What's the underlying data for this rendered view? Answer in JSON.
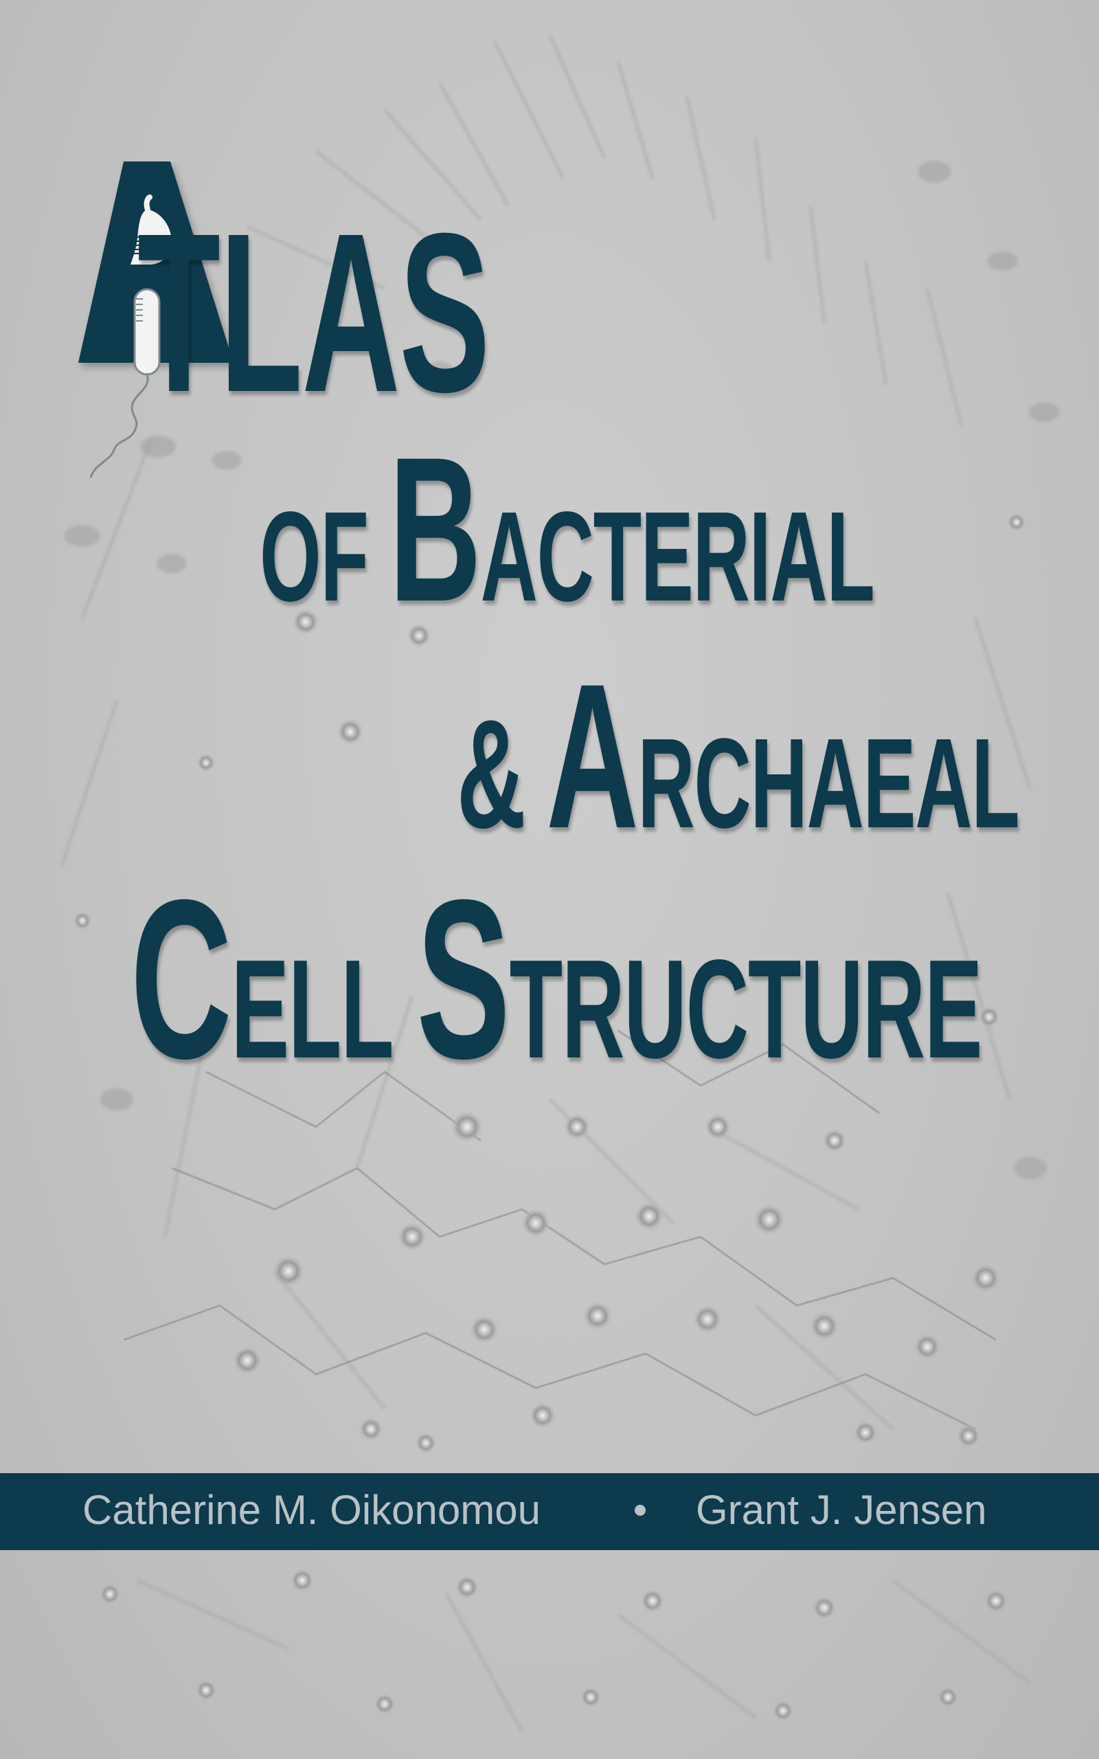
{
  "cover": {
    "title": {
      "line1_rest": "TLAS",
      "line2_of": "OF",
      "line2_cap": "B",
      "line2_rest": "ACTERIAL",
      "line3_amp": "&",
      "line3_cap": "A",
      "line3_rest": "RCHAEAL",
      "line4_cap1": "C",
      "line4_rest1": "ELL",
      "line4_cap2": "S",
      "line4_rest2": "TRUCTURE"
    },
    "authors": [
      "Catherine M. Oikonomou",
      "Grant J. Jensen"
    ],
    "separator": "•"
  },
  "colors": {
    "title": "#0d3a4c",
    "author_bar": "#0d3a4c",
    "author_text": "#b9c2c6",
    "background": "#c4c4c4"
  },
  "icons": [
    "bacterium-in-letter-a-icon"
  ]
}
